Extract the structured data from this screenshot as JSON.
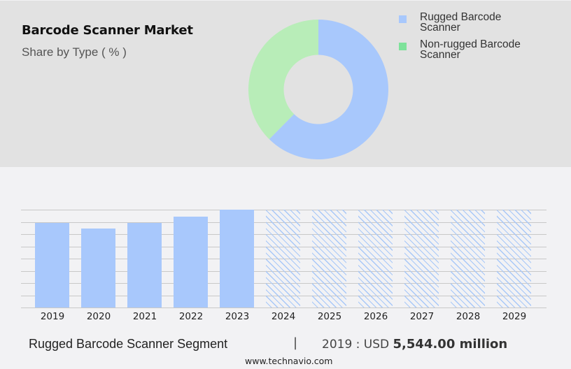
{
  "header": {
    "title": "Barcode Scanner Market",
    "subtitle": "Share by Type ( % )"
  },
  "legend": {
    "items": [
      {
        "label_line1": "Rugged Barcode",
        "label_line2": "Scanner",
        "color": "#a8c8fc"
      },
      {
        "label_line1": "Non-rugged Barcode",
        "label_line2": "Scanner",
        "color": "#7ee29a"
      }
    ]
  },
  "footer": {
    "segment_label": "Rugged Barcode Scanner Segment",
    "divider": "|",
    "value_prefix": "2019 : USD",
    "value_amount": "5,544.00 million",
    "source": "www.technavio.com"
  },
  "colors": {
    "rugged": "#a8c8fc",
    "non_rugged_donut": "#b8edb8",
    "non_rugged_legend": "#7ee29a",
    "top_panel_bg": "#e2e2e2",
    "bottom_bg": "#f2f2f4",
    "gridline": "#c8c8c8"
  },
  "chart_data": [
    {
      "type": "pie",
      "subtype": "donut",
      "title": "Barcode Scanner Market",
      "subtitle": "Share by Type ( % )",
      "categories": [
        "Rugged Barcode Scanner",
        "Non-rugged Barcode Scanner"
      ],
      "values": [
        62.4,
        37.6
      ],
      "colors": [
        "#a8c8fc",
        "#b8edb8"
      ],
      "start_angle_deg": 0,
      "direction": "clockwise",
      "legend_position": "right"
    },
    {
      "type": "bar",
      "title": "Rugged Barcode Scanner Segment",
      "categories": [
        "2019",
        "2020",
        "2021",
        "2022",
        "2023",
        "2024",
        "2025",
        "2026",
        "2027",
        "2028",
        "2029"
      ],
      "series": [
        {
          "name": "Rugged Barcode Scanner (actual, relative height)",
          "values": [
            121,
            113,
            121,
            130,
            140,
            null,
            null,
            null,
            null,
            null,
            null
          ],
          "style": "solid"
        },
        {
          "name": "Forecast (hatched placeholder)",
          "values": [
            null,
            null,
            null,
            null,
            null,
            140,
            140,
            140,
            140,
            140,
            140
          ],
          "style": "hatched"
        }
      ],
      "annotation": "2019 : USD 5,544.00 million",
      "estimated_values_usd_million": [
        5544,
        5177,
        5544,
        5956,
        6414
      ],
      "xlabel": "",
      "ylabel": "",
      "y_axis_labels_visible": false,
      "grid": true,
      "gridline_count": 9,
      "ylim_relative": [
        0,
        140
      ]
    }
  ]
}
